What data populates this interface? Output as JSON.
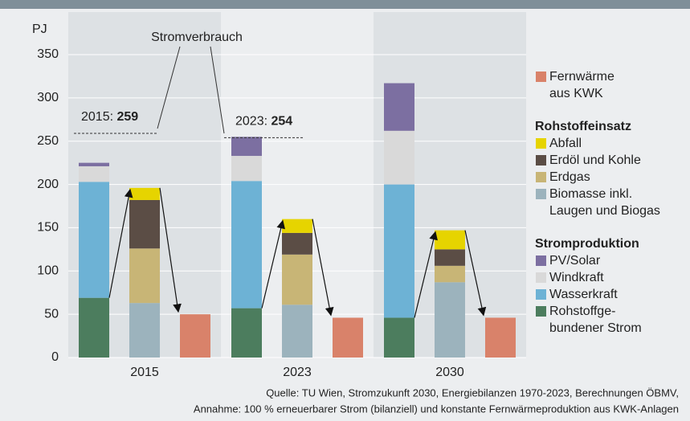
{
  "chart_data": {
    "type": "stacked_bar",
    "y_label": "PJ",
    "categories": [
      "2015",
      "2023",
      "2030"
    ],
    "ylim": [
      0,
      350
    ],
    "yticks": [
      0,
      50,
      100,
      150,
      200,
      250,
      300,
      350
    ],
    "grid": true,
    "annotation": "Stromverbrauch",
    "reference_lines": [
      {
        "label": "2015:",
        "value": 259
      },
      {
        "label": "2023:",
        "value": 254
      }
    ],
    "groups": [
      {
        "series": [
          {
            "name": "Fernwärme\naus KWK",
            "color": "#d9826a",
            "values": [
              50,
              46,
              46
            ]
          }
        ]
      },
      {
        "title": "Rohstoffeinsatz",
        "series": [
          {
            "name": "Abfall",
            "color": "#e6d400",
            "values": [
              14,
              16,
              22
            ]
          },
          {
            "name": "Erdöl und Kohle",
            "color": "#5b4d45",
            "values": [
              56,
              25,
              19
            ]
          },
          {
            "name": "Erdgas",
            "color": "#c8b576",
            "values": [
              63,
              58,
              19
            ]
          },
          {
            "name": "Biomasse inkl.\nLaugen und Biogas",
            "color": "#9cb3bd",
            "values": [
              63,
              61,
              87
            ]
          }
        ]
      },
      {
        "title": "Stromproduktion",
        "series": [
          {
            "name": "PV/Solar",
            "color": "#7c6fa1",
            "values": [
              4,
              22,
              55
            ]
          },
          {
            "name": "Windkraft",
            "color": "#d9d9d9",
            "values": [
              18,
              29,
              62
            ]
          },
          {
            "name": "Wasserkraft",
            "color": "#6db2d5",
            "values": [
              134,
              147,
              154
            ]
          },
          {
            "name": "Rohstoffge-\nbundener Strom",
            "color": "#4c7d5e",
            "values": [
              69,
              57,
              46
            ]
          }
        ]
      }
    ],
    "source": [
      "Quelle: TU Wien, Stromzukunft 2030, Energiebilanzen 1970-2023, Berechnungen ÖBMV,",
      "Annahme: 100 % erneuerbarer Strom (bilanziell) und konstante Fernwärmeproduktion aus KWK-Anlagen"
    ]
  }
}
